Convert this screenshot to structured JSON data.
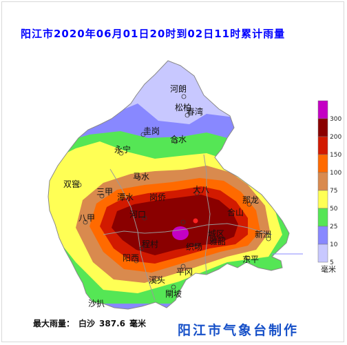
{
  "title": "阳江市2020年06月01日20时到02日11时累计雨量",
  "legend": {
    "unit": "毫米",
    "levels": [
      {
        "label": "300",
        "color": "#c400c4"
      },
      {
        "label": "200",
        "color": "#8a0000"
      },
      {
        "label": "150",
        "color": "#d21a00"
      },
      {
        "label": "100",
        "color": "#ff6a00"
      },
      {
        "label": "75",
        "color": "#d98a4e"
      },
      {
        "label": "50",
        "color": "#ffff55"
      },
      {
        "label": "25",
        "color": "#55e655"
      },
      {
        "label": "10",
        "color": "#8888ff"
      },
      {
        "label": "5",
        "color": "#c8c8ff"
      }
    ]
  },
  "places": {
    "helang": "河朗",
    "songbai": "松柏",
    "chunwan": "春湾",
    "guigang": "圭岗",
    "heshui": "合水",
    "yongning": "永宁",
    "mashui": "马水",
    "shuangjiao": "双窖",
    "sanjia": "三甲",
    "tanshui": "潭水",
    "ganggan": "岗侨",
    "daba": "大八",
    "nalong": "那龙",
    "heshan": "合山",
    "bajia": "八甲",
    "hekou": "河口",
    "pingang": "平冈",
    "xinzhou": "新洲",
    "shacheng": "城区",
    "yabao": "雅韶",
    "chengcun": "程村",
    "zhichang": "织场",
    "dongping": "东平",
    "yangxi": "阳西",
    "xiyang": "溪头",
    "pinggang": "平冈",
    "shangyang": "上洋",
    "shahai": "沙扒",
    "xiamen": "閘坡"
  },
  "max_rain": {
    "label": "最大雨量：",
    "station": "白沙",
    "value": "387.6",
    "unit": "毫米"
  },
  "bureau": "阳江市气象台制作"
}
